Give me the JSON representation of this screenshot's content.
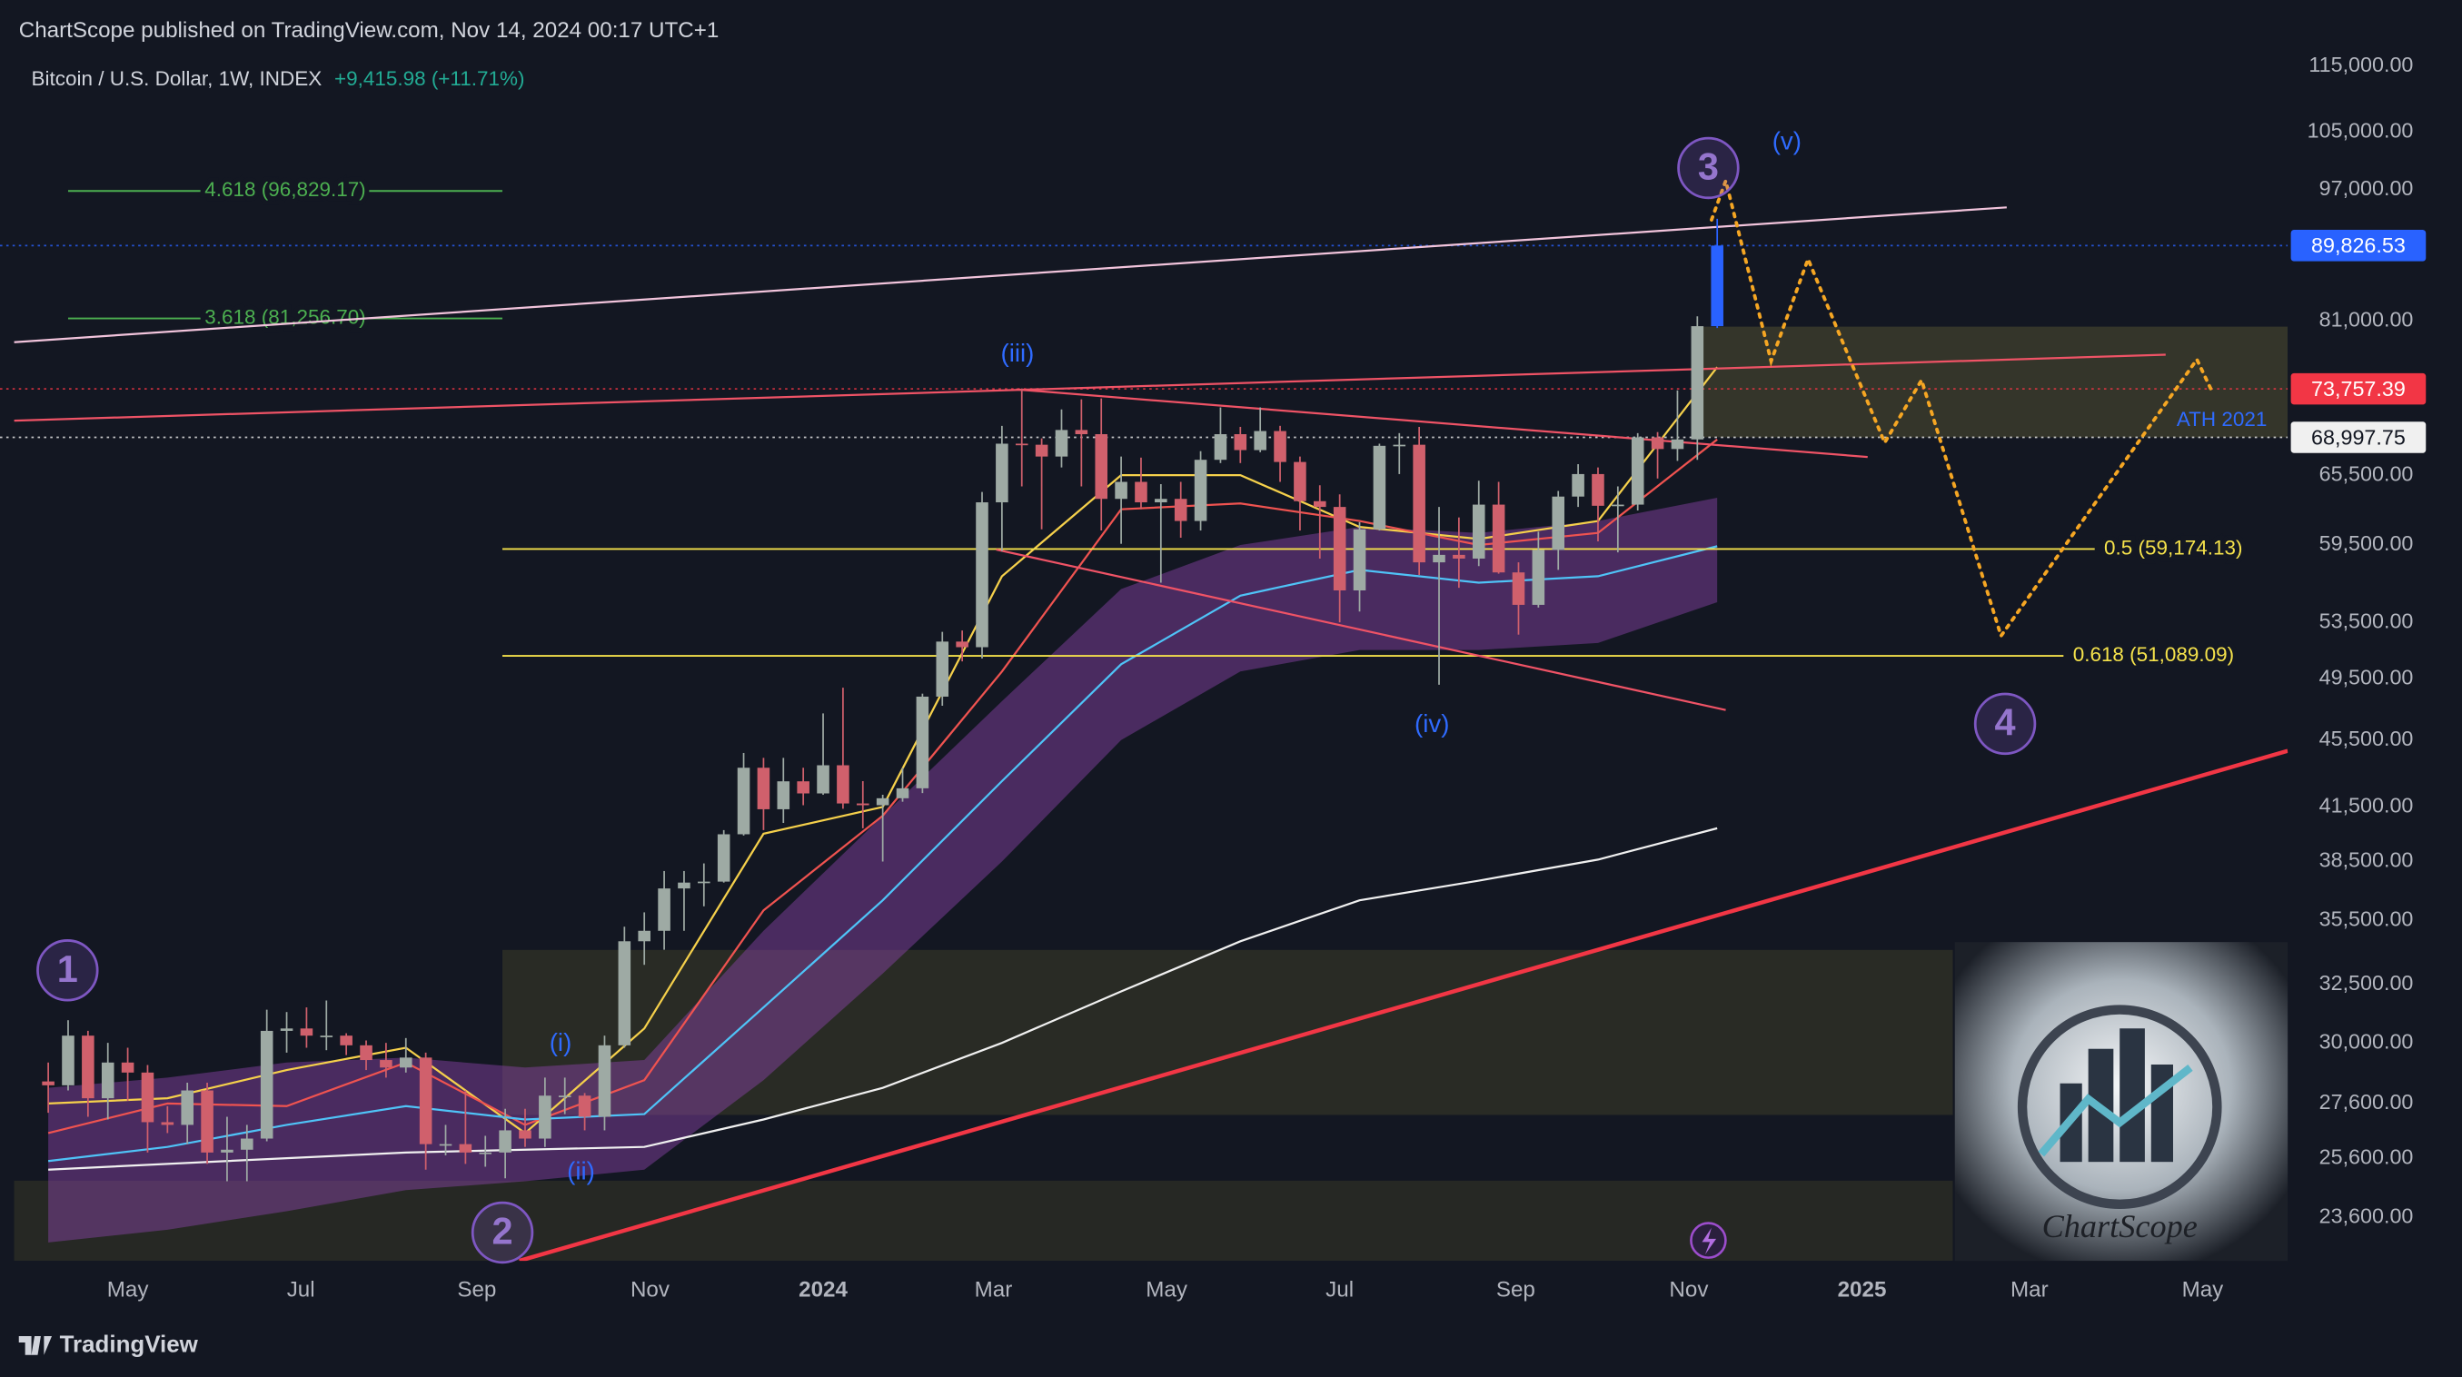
{
  "page": {
    "header": "ChartScope published on TradingView.com, Nov 14, 2024 00:17 UTC+1",
    "footer": "TradingView"
  },
  "chart_data": {
    "type": "candlestick",
    "title": "Bitcoin / U.S. Dollar, 1W, INDEX",
    "subtitle": "+9,415.98 (+11.71%)",
    "subtitle_color": "#22ab94",
    "log_scale": true,
    "grid": false,
    "xlim": [
      75,
      881
    ],
    "ylim": [
      22230,
      116500
    ],
    "xticks": [
      {
        "value": 120,
        "label": "May"
      },
      {
        "value": 181,
        "label": "Jul"
      },
      {
        "value": 243,
        "label": "Sep"
      },
      {
        "value": 304,
        "label": "Nov"
      },
      {
        "value": 365,
        "label": "2024"
      },
      {
        "value": 425,
        "label": "Mar"
      },
      {
        "value": 486,
        "label": "May"
      },
      {
        "value": 547,
        "label": "Jul"
      },
      {
        "value": 609,
        "label": "Sep"
      },
      {
        "value": 670,
        "label": "Nov"
      },
      {
        "value": 731,
        "label": "2025"
      },
      {
        "value": 790,
        "label": "Mar"
      },
      {
        "value": 851,
        "label": "May"
      }
    ],
    "yticks": [
      {
        "value": 115000,
        "label": "115,000.00"
      },
      {
        "value": 105000,
        "label": "105,000.00"
      },
      {
        "value": 97000,
        "label": "97,000.00"
      },
      {
        "value": 81000,
        "label": "81,000.00"
      },
      {
        "value": 65500,
        "label": "65,500.00"
      },
      {
        "value": 59500,
        "label": "59,500.00"
      },
      {
        "value": 53500,
        "label": "53,500.00"
      },
      {
        "value": 49500,
        "label": "49,500.00"
      },
      {
        "value": 45500,
        "label": "45,500.00"
      },
      {
        "value": 41500,
        "label": "41,500.00"
      },
      {
        "value": 38500,
        "label": "38,500.00"
      },
      {
        "value": 35500,
        "label": "35,500.00"
      },
      {
        "value": 32500,
        "label": "32,500.00"
      },
      {
        "value": 30000,
        "label": "30,000.00"
      },
      {
        "value": 27600,
        "label": "27,600.00"
      },
      {
        "value": 25600,
        "label": "25,600.00"
      },
      {
        "value": 23600,
        "label": "23,600.00"
      }
    ],
    "candles": {
      "up_color": "#9eaaa4",
      "down_color": "#d0606c",
      "last_color": "#2962ff",
      "x": [
        92,
        99,
        106,
        113,
        120,
        127,
        134,
        141,
        148,
        155,
        162,
        169,
        176,
        183,
        190,
        197,
        204,
        211,
        218,
        225,
        232,
        239,
        246,
        253,
        260,
        267,
        274,
        281,
        288,
        295,
        302,
        309,
        316,
        323,
        330,
        337,
        344,
        351,
        358,
        365,
        372,
        379,
        386,
        393,
        400,
        407,
        414,
        421,
        428,
        435,
        442,
        449,
        456,
        463,
        470,
        477,
        484,
        491,
        498,
        505,
        512,
        519,
        526,
        533,
        540,
        547,
        554,
        561,
        568,
        575,
        582,
        589,
        596,
        603,
        610,
        617,
        624,
        631,
        638,
        645,
        652,
        659,
        666,
        673,
        680
      ],
      "open": [
        28450,
        28300,
        30300,
        27800,
        29200,
        28800,
        26900,
        26800,
        28100,
        25800,
        25900,
        26300,
        30500,
        30600,
        30300,
        30300,
        29900,
        29300,
        29000,
        29400,
        26100,
        26100,
        25800,
        25800,
        26600,
        26300,
        27900,
        27900,
        27100,
        29900,
        34500,
        35000,
        37100,
        37400,
        37450,
        39970,
        43800,
        41370,
        42990,
        42280,
        43950,
        41700,
        41600,
        42000,
        42580,
        48300,
        52100,
        51700,
        63100,
        68400,
        68300,
        67200,
        69700,
        69300,
        63400,
        64900,
        63100,
        63400,
        61500,
        66900,
        69300,
        67800,
        69600,
        66700,
        63200,
        62700,
        55900,
        60800,
        68200,
        68300,
        58100,
        58700,
        58400,
        62900,
        57300,
        54800,
        59100,
        63600,
        65600,
        62800,
        62900,
        69000,
        67900,
        68800,
        80400
      ],
      "high": [
        29200,
        30950,
        30500,
        30000,
        29800,
        29100,
        27500,
        28400,
        28400,
        27100,
        26800,
        31400,
        31300,
        31500,
        31800,
        30400,
        30100,
        30000,
        30200,
        29600,
        26800,
        28100,
        26400,
        27400,
        27400,
        28600,
        28600,
        28000,
        30300,
        35200,
        35900,
        38000,
        38000,
        38400,
        40200,
        44700,
        44400,
        44400,
        43800,
        47200,
        48900,
        43000,
        42200,
        43800,
        48500,
        52800,
        52900,
        64000,
        70100,
        73800,
        68900,
        71700,
        72700,
        72800,
        67200,
        67100,
        64700,
        64900,
        67700,
        71900,
        70000,
        71900,
        70100,
        67200,
        64600,
        63800,
        61400,
        68400,
        69400,
        70000,
        62700,
        61800,
        65000,
        64900,
        58100,
        60600,
        64100,
        66500,
        66200,
        64500,
        69400,
        69500,
        73600,
        81500,
        93200
      ],
      "low": [
        27250,
        28100,
        27100,
        27000,
        27700,
        25800,
        26500,
        26100,
        25400,
        24800,
        24800,
        26200,
        29600,
        29800,
        29700,
        29500,
        28900,
        28600,
        28800,
        25200,
        25700,
        25400,
        25300,
        24900,
        26000,
        26000,
        27200,
        26600,
        26600,
        29800,
        33400,
        34100,
        35000,
        36200,
        37400,
        39900,
        40200,
        40600,
        41600,
        42200,
        41400,
        40300,
        38500,
        41800,
        42300,
        47700,
        50700,
        50900,
        59000,
        64500,
        60800,
        66200,
        64500,
        60700,
        59600,
        62500,
        56500,
        60100,
        60700,
        66600,
        66600,
        67600,
        64900,
        60700,
        58400,
        53500,
        54300,
        60700,
        65600,
        57100,
        49100,
        56100,
        57800,
        57200,
        52600,
        54600,
        57500,
        62700,
        59800,
        58900,
        62400,
        65200,
        66800,
        66900,
        80200
      ],
      "close": [
        28300,
        30300,
        27800,
        29200,
        28800,
        26900,
        26800,
        28100,
        25800,
        25900,
        26300,
        30500,
        30600,
        30300,
        30300,
        29900,
        29300,
        29000,
        29400,
        26100,
        26100,
        25800,
        25800,
        26600,
        26300,
        27900,
        27900,
        27100,
        29900,
        34500,
        35000,
        37100,
        37400,
        37450,
        39970,
        43800,
        41370,
        42990,
        42280,
        43950,
        41700,
        41600,
        42000,
        42580,
        48300,
        52100,
        51700,
        63100,
        68400,
        68300,
        67200,
        69700,
        69300,
        63400,
        64900,
        63100,
        63400,
        61500,
        66900,
        69300,
        67800,
        69600,
        66700,
        63200,
        62700,
        55900,
        60800,
        68200,
        68300,
        58100,
        58700,
        58400,
        62900,
        57300,
        54800,
        59100,
        63600,
        65600,
        62800,
        62900,
        69000,
        67900,
        68800,
        80400,
        89826.53
      ]
    },
    "band": {
      "color": "#8e44ad",
      "x": [
        92,
        134,
        176,
        218,
        260,
        302,
        344,
        386,
        428,
        470,
        512,
        554,
        596,
        638,
        680
      ],
      "upper": [
        28200,
        28600,
        29200,
        29400,
        29000,
        29300,
        35000,
        41000,
        48000,
        56000,
        59500,
        61000,
        60500,
        61500,
        63500
      ],
      "lower": [
        22800,
        23200,
        23800,
        24500,
        24800,
        25200,
        28500,
        33000,
        38500,
        45500,
        50000,
        51500,
        51500,
        52000,
        55000
      ]
    },
    "lines": [
      {
        "color": "#f5d04b",
        "x": [
          92,
          134,
          176,
          218,
          260,
          302,
          344,
          386,
          428,
          470,
          512,
          554,
          596,
          638,
          680
        ],
        "values": [
          27600,
          27800,
          28900,
          29800,
          26500,
          30600,
          40000,
          41500,
          57000,
          65500,
          65500,
          61000,
          60000,
          61500,
          76000
        ]
      },
      {
        "color": "#ef5350",
        "x": [
          92,
          134,
          176,
          218,
          260,
          302,
          344,
          386,
          428,
          470,
          512,
          554,
          596,
          638,
          680
        ],
        "values": [
          26500,
          27600,
          27500,
          29200,
          26800,
          28500,
          36000,
          41000,
          50000,
          62500,
          63000,
          61500,
          59500,
          60500,
          68800
        ]
      },
      {
        "color": "#4fc3f7",
        "x": [
          92,
          134,
          176,
          218,
          260,
          302,
          344,
          386,
          428,
          470,
          512,
          554,
          596,
          638,
          680
        ],
        "values": [
          25500,
          26000,
          26800,
          27500,
          27000,
          27200,
          31500,
          36500,
          43000,
          50500,
          55500,
          57500,
          56500,
          57000,
          59400
        ]
      },
      {
        "color": "#f0f0f0",
        "x": [
          92,
          134,
          176,
          218,
          260,
          302,
          344,
          386,
          428,
          470,
          512,
          554,
          596,
          638,
          680
        ],
        "values": [
          25200,
          25400,
          25600,
          25800,
          25900,
          26000,
          27000,
          28200,
          30000,
          32200,
          34500,
          36500,
          37500,
          38600,
          40300
        ]
      }
    ],
    "zones": [
      {
        "color": "#3b3b2b",
        "x": [
          672,
          881
        ],
        "values": [
          80350,
          69000
        ]
      },
      {
        "color": "#2e2f26",
        "x": [
          252,
          763
        ],
        "values": [
          34090,
          27170
        ]
      },
      {
        "color": "#2a2b24",
        "x": [
          80,
          763
        ],
        "values": [
          24820,
          22230
        ]
      }
    ],
    "trendlines": [
      {
        "color": "#f2c4dc",
        "width": 1.3,
        "x": [
          80,
          782
        ],
        "values": [
          78650,
          94670
        ]
      },
      {
        "color": "#ef5366",
        "width": 1.3,
        "x": [
          80,
          838
        ],
        "values": [
          70600,
          77300
        ]
      },
      {
        "color": "#ef5366",
        "width": 1.3,
        "x": [
          433,
          733
        ],
        "values": [
          73700,
          67160
        ]
      },
      {
        "color": "#ef5366",
        "width": 1.3,
        "x": [
          426,
          683
        ],
        "values": [
          59130,
          47420
        ]
      },
      {
        "color": "#f23645",
        "width": 2.6,
        "x": [
          258,
          881
        ],
        "values": [
          22230,
          44830
        ]
      }
    ],
    "projection": {
      "color": "#f5a623",
      "x": [
        678,
        683,
        699,
        712,
        739,
        752,
        780,
        849,
        854
      ],
      "values": [
        93060,
        98200,
        76620,
        88170,
        68490,
        74650,
        52510,
        76800,
        73700
      ]
    },
    "levels": [
      {
        "label": "4.618 (96,829.17)",
        "value": 96829.17,
        "color": "#4caf50",
        "x": [
          99,
          252
        ],
        "label_position": "middle"
      },
      {
        "label": "3.618 (81,256.70)",
        "value": 81256.7,
        "color": "#4caf50",
        "x": [
          99,
          252
        ],
        "label_position": "middle"
      },
      {
        "label": "0.5 (59,174.13)",
        "value": 59174.13,
        "color": "#f5e24b",
        "x": [
          252,
          813
        ],
        "label_position": "end"
      },
      {
        "label": "0.618 (51,089.09)",
        "value": 51089.09,
        "color": "#f5e24b",
        "x": [
          252,
          802
        ],
        "label_position": "end"
      }
    ],
    "price_labels": [
      {
        "label": "89,826.53",
        "value": 89826.53,
        "color": "#2962ff",
        "text_color": "#ffffff"
      },
      {
        "label": "73,757.39",
        "value": 73757.39,
        "color": "#f23645",
        "text_color": "#ffffff"
      },
      {
        "label": "68,997.75",
        "value": 68997.75,
        "color": "#f0f0f0",
        "text_color": "#131722"
      }
    ],
    "annotations": [
      "ATH 2021"
    ],
    "waves": [
      "1",
      "2",
      "3",
      "4"
    ],
    "subwaves": [
      "(i)",
      "(ii)",
      "(iii)",
      "(iv)",
      "(v)"
    ],
    "watermark": "ChartScope"
  }
}
